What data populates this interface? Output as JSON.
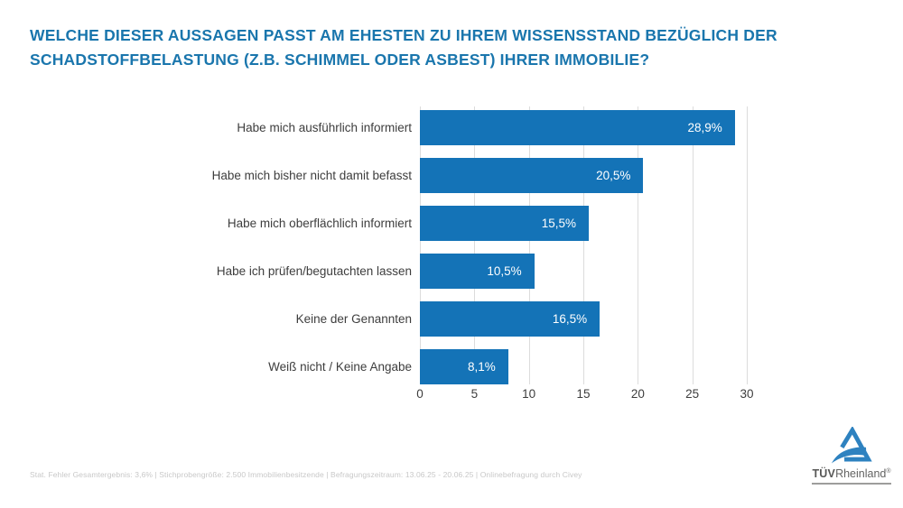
{
  "header": {
    "title_lines": [
      "WELCHE DIESER AUSSAGEN PASST AM EHESTEN ZU IHREM WISSENSSTAND BEZÜGLICH DER",
      "SCHADSTOFFBELASTUNG (Z.B. SCHIMMEL ODER ASBEST) IHRER IMMOBILIE?"
    ],
    "title_color": "#1a76ad"
  },
  "chart_data": {
    "type": "bar",
    "orientation": "horizontal",
    "title": "",
    "xlabel": "",
    "ylabel": "",
    "categories": [
      "Habe mich ausführlich informiert",
      "Habe mich bisher nicht damit befasst",
      "Habe mich oberflächlich informiert",
      "Habe ich prüfen/begutachten lassen",
      "Keine der Genannten",
      "Weiß nicht / Keine Angabe"
    ],
    "values": [
      28.9,
      20.5,
      15.5,
      10.5,
      16.5,
      8.1
    ],
    "value_labels": [
      "28,9%",
      "20,5%",
      "15,5%",
      "10,5%",
      "16,5%",
      "8,1%"
    ],
    "x_ticks": [
      0,
      5,
      10,
      15,
      20,
      25,
      30
    ],
    "xlim": [
      0,
      30
    ],
    "grid": true,
    "legend": "none",
    "bar_color": "#1473b7",
    "value_label_color": "#ffffff",
    "axis_text_color": "#3d3d3d"
  },
  "footer": {
    "source_note": "Stat. Fehler Gesamtergebnis: 3,6% | Stichprobengröße: 2.500 Immobilienbesitzende | Befragungszeitraum: 13.06.25 - 20.06.25 | Onlinebefragung durch Civey"
  },
  "logo": {
    "brand_bold": "TÜV",
    "brand_regular": "Rheinland",
    "registered_mark": "®",
    "triangle_color": "#2e82c0"
  }
}
